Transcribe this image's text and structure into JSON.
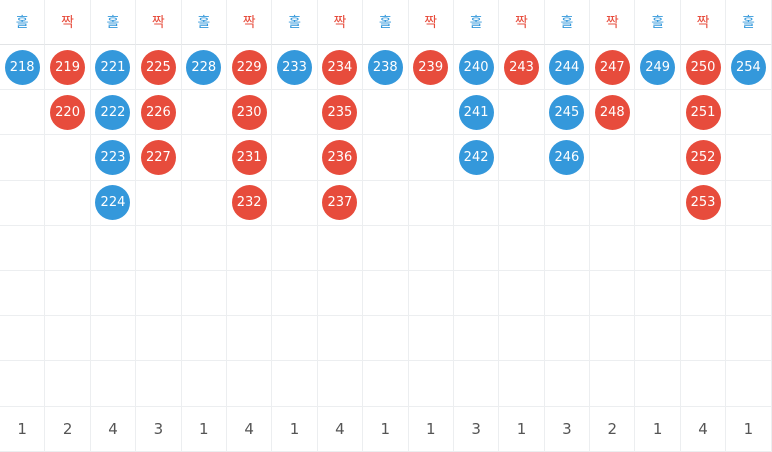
{
  "colors": {
    "odd": "#3498db",
    "even": "#e74c3c"
  },
  "columns": [
    {
      "label": "홀",
      "kind": "odd",
      "balls": [
        "218"
      ],
      "count": "1"
    },
    {
      "label": "짝",
      "kind": "even",
      "balls": [
        "219",
        "220"
      ],
      "count": "2"
    },
    {
      "label": "홀",
      "kind": "odd",
      "balls": [
        "221",
        "222",
        "223",
        "224"
      ],
      "count": "4"
    },
    {
      "label": "짝",
      "kind": "even",
      "balls": [
        "225",
        "226",
        "227"
      ],
      "count": "3"
    },
    {
      "label": "홀",
      "kind": "odd",
      "balls": [
        "228"
      ],
      "count": "1"
    },
    {
      "label": "짝",
      "kind": "even",
      "balls": [
        "229",
        "230",
        "231",
        "232"
      ],
      "count": "4"
    },
    {
      "label": "홀",
      "kind": "odd",
      "balls": [
        "233"
      ],
      "count": "1"
    },
    {
      "label": "짝",
      "kind": "even",
      "balls": [
        "234",
        "235",
        "236",
        "237"
      ],
      "count": "4"
    },
    {
      "label": "홀",
      "kind": "odd",
      "balls": [
        "238"
      ],
      "count": "1"
    },
    {
      "label": "짝",
      "kind": "even",
      "balls": [
        "239"
      ],
      "count": "1"
    },
    {
      "label": "홀",
      "kind": "odd",
      "balls": [
        "240",
        "241",
        "242"
      ],
      "count": "3"
    },
    {
      "label": "짝",
      "kind": "even",
      "balls": [
        "243"
      ],
      "count": "1"
    },
    {
      "label": "홀",
      "kind": "odd",
      "balls": [
        "244",
        "245",
        "246"
      ],
      "count": "3"
    },
    {
      "label": "짝",
      "kind": "even",
      "balls": [
        "247",
        "248"
      ],
      "count": "2"
    },
    {
      "label": "홀",
      "kind": "odd",
      "balls": [
        "249"
      ],
      "count": "1"
    },
    {
      "label": "짝",
      "kind": "even",
      "balls": [
        "250",
        "251",
        "252",
        "253"
      ],
      "count": "4"
    },
    {
      "label": "홀",
      "kind": "odd",
      "balls": [
        "254"
      ],
      "count": "1"
    }
  ]
}
